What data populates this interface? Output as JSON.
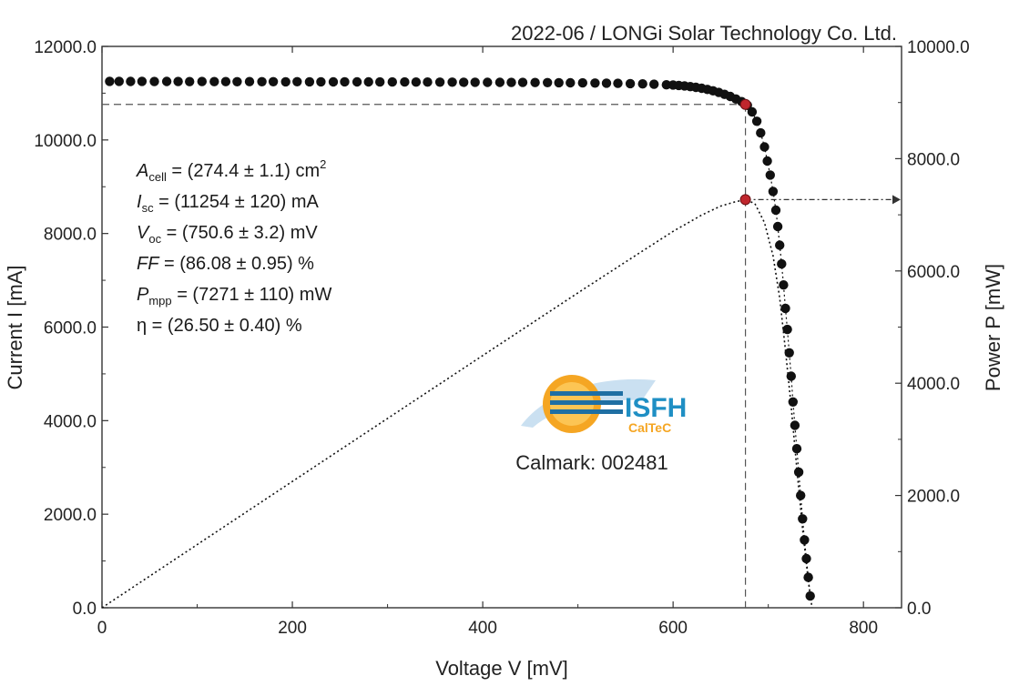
{
  "header": {
    "source": "2022-06 / LONGi Solar Technology Co. Ltd."
  },
  "chart_data": {
    "type": "scatter",
    "xlabel": "Voltage V [mV]",
    "ylabel": "Current I [mA]",
    "y2label": "Power P [mW]",
    "xlim": [
      0,
      840
    ],
    "ylim": [
      0,
      12000
    ],
    "y2lim": [
      0,
      10000
    ],
    "xticks": [
      {
        "value": 0,
        "label": "0"
      },
      {
        "value": 200,
        "label": "200"
      },
      {
        "value": 400,
        "label": "400"
      },
      {
        "value": 600,
        "label": "600"
      },
      {
        "value": 800,
        "label": "800"
      }
    ],
    "yticks": [
      {
        "value": 0,
        "label": "0.0"
      },
      {
        "value": 2000,
        "label": "2000.0"
      },
      {
        "value": 4000,
        "label": "4000.0"
      },
      {
        "value": 6000,
        "label": "6000.0"
      },
      {
        "value": 8000,
        "label": "8000.0"
      },
      {
        "value": 10000,
        "label": "10000.0"
      },
      {
        "value": 12000,
        "label": "12000.0"
      }
    ],
    "y2ticks": [
      {
        "value": 0,
        "label": "0.0"
      },
      {
        "value": 2000,
        "label": "2000.0"
      },
      {
        "value": 4000,
        "label": "4000.0"
      },
      {
        "value": 6000,
        "label": "6000.0"
      },
      {
        "value": 8000,
        "label": "8000.0"
      },
      {
        "value": 10000,
        "label": "10000.0"
      }
    ],
    "iv_points": [
      [
        8,
        11254
      ],
      [
        18,
        11254
      ],
      [
        30,
        11252
      ],
      [
        42,
        11253
      ],
      [
        55,
        11250
      ],
      [
        68,
        11251
      ],
      [
        80,
        11250
      ],
      [
        92,
        11248
      ],
      [
        105,
        11250
      ],
      [
        118,
        11247
      ],
      [
        130,
        11248
      ],
      [
        142,
        11246
      ],
      [
        155,
        11247
      ],
      [
        168,
        11245
      ],
      [
        180,
        11246
      ],
      [
        193,
        11244
      ],
      [
        205,
        11245
      ],
      [
        218,
        11243
      ],
      [
        230,
        11244
      ],
      [
        243,
        11242
      ],
      [
        255,
        11243
      ],
      [
        268,
        11241
      ],
      [
        280,
        11242
      ],
      [
        292,
        11240
      ],
      [
        305,
        11240
      ],
      [
        318,
        11239
      ],
      [
        330,
        11238
      ],
      [
        342,
        11238
      ],
      [
        355,
        11236
      ],
      [
        368,
        11236
      ],
      [
        380,
        11234
      ],
      [
        392,
        11234
      ],
      [
        405,
        11232
      ],
      [
        418,
        11231
      ],
      [
        430,
        11230
      ],
      [
        442,
        11229
      ],
      [
        455,
        11227
      ],
      [
        468,
        11226
      ],
      [
        480,
        11224
      ],
      [
        492,
        11222
      ],
      [
        505,
        11220
      ],
      [
        518,
        11217
      ],
      [
        530,
        11214
      ],
      [
        542,
        11210
      ],
      [
        555,
        11205
      ],
      [
        568,
        11198
      ],
      [
        580,
        11190
      ],
      [
        593,
        11180
      ],
      [
        600,
        11175
      ],
      [
        606,
        11165
      ],
      [
        612,
        11155
      ],
      [
        618,
        11140
      ],
      [
        624,
        11125
      ],
      [
        630,
        11105
      ],
      [
        636,
        11080
      ],
      [
        642,
        11050
      ],
      [
        648,
        11015
      ],
      [
        654,
        10975
      ],
      [
        660,
        10930
      ],
      [
        666,
        10875
      ],
      [
        672,
        10820
      ],
      [
        678,
        10740
      ],
      [
        683,
        10600
      ],
      [
        688,
        10400
      ],
      [
        692,
        10150
      ],
      [
        696,
        9850
      ],
      [
        699,
        9550
      ],
      [
        702,
        9250
      ],
      [
        705,
        8900
      ],
      [
        708,
        8500
      ],
      [
        710,
        8150
      ],
      [
        712,
        7750
      ],
      [
        714,
        7350
      ],
      [
        716,
        6900
      ],
      [
        718,
        6400
      ],
      [
        720,
        5950
      ],
      [
        722,
        5450
      ],
      [
        724,
        4950
      ],
      [
        726,
        4400
      ],
      [
        728,
        3900
      ],
      [
        730,
        3400
      ],
      [
        732,
        2900
      ],
      [
        734,
        2400
      ],
      [
        736,
        1900
      ],
      [
        738,
        1450
      ],
      [
        740,
        1050
      ],
      [
        742,
        650
      ],
      [
        744,
        250
      ]
    ],
    "pv_curve": [
      [
        0,
        0
      ],
      [
        100,
        1125
      ],
      [
        200,
        2249
      ],
      [
        300,
        3372
      ],
      [
        400,
        4492
      ],
      [
        500,
        5610
      ],
      [
        560,
        6269
      ],
      [
        600,
        6705
      ],
      [
        630,
        6995
      ],
      [
        650,
        7155
      ],
      [
        665,
        7230
      ],
      [
        676,
        7271
      ],
      [
        686,
        7200
      ],
      [
        696,
        6860
      ],
      [
        705,
        6270
      ],
      [
        712,
        5520
      ],
      [
        718,
        4590
      ],
      [
        724,
        3590
      ],
      [
        730,
        2480
      ],
      [
        736,
        1400
      ],
      [
        742,
        480
      ],
      [
        746,
        0
      ]
    ],
    "mpp": {
      "v": 676,
      "i": 10760,
      "p": 7271
    },
    "parameters": [
      {
        "sym": "A",
        "sub": "cell",
        "rest": " = (274.4 ± 1.1) cm",
        "sup": "2"
      },
      {
        "sym": "I",
        "sub": "sc",
        "rest": " = (11254 ± 120) mA",
        "sup": ""
      },
      {
        "sym": "V",
        "sub": "oc",
        "rest": " = (750.6 ± 3.2) mV",
        "sup": ""
      },
      {
        "sym": "FF",
        "sub": "",
        "rest": " = (86.08 ± 0.95) %",
        "sup": ""
      },
      {
        "sym": "P",
        "sub": "mpp",
        "rest": " = (7271 ± 110) mW",
        "sup": ""
      },
      {
        "sym": "η",
        "sub": "",
        "rest": " = (26.50 ± 0.40) %",
        "sup": ""
      }
    ]
  },
  "logo": {
    "name": "ISFH",
    "sub": "CalTeC"
  },
  "calmark": "Calmark: 002481",
  "colors": {
    "marker": "#111111",
    "mpp": "#c0262d",
    "logo_blue": "#1f8fc4",
    "logo_orange": "#f5a623"
  }
}
